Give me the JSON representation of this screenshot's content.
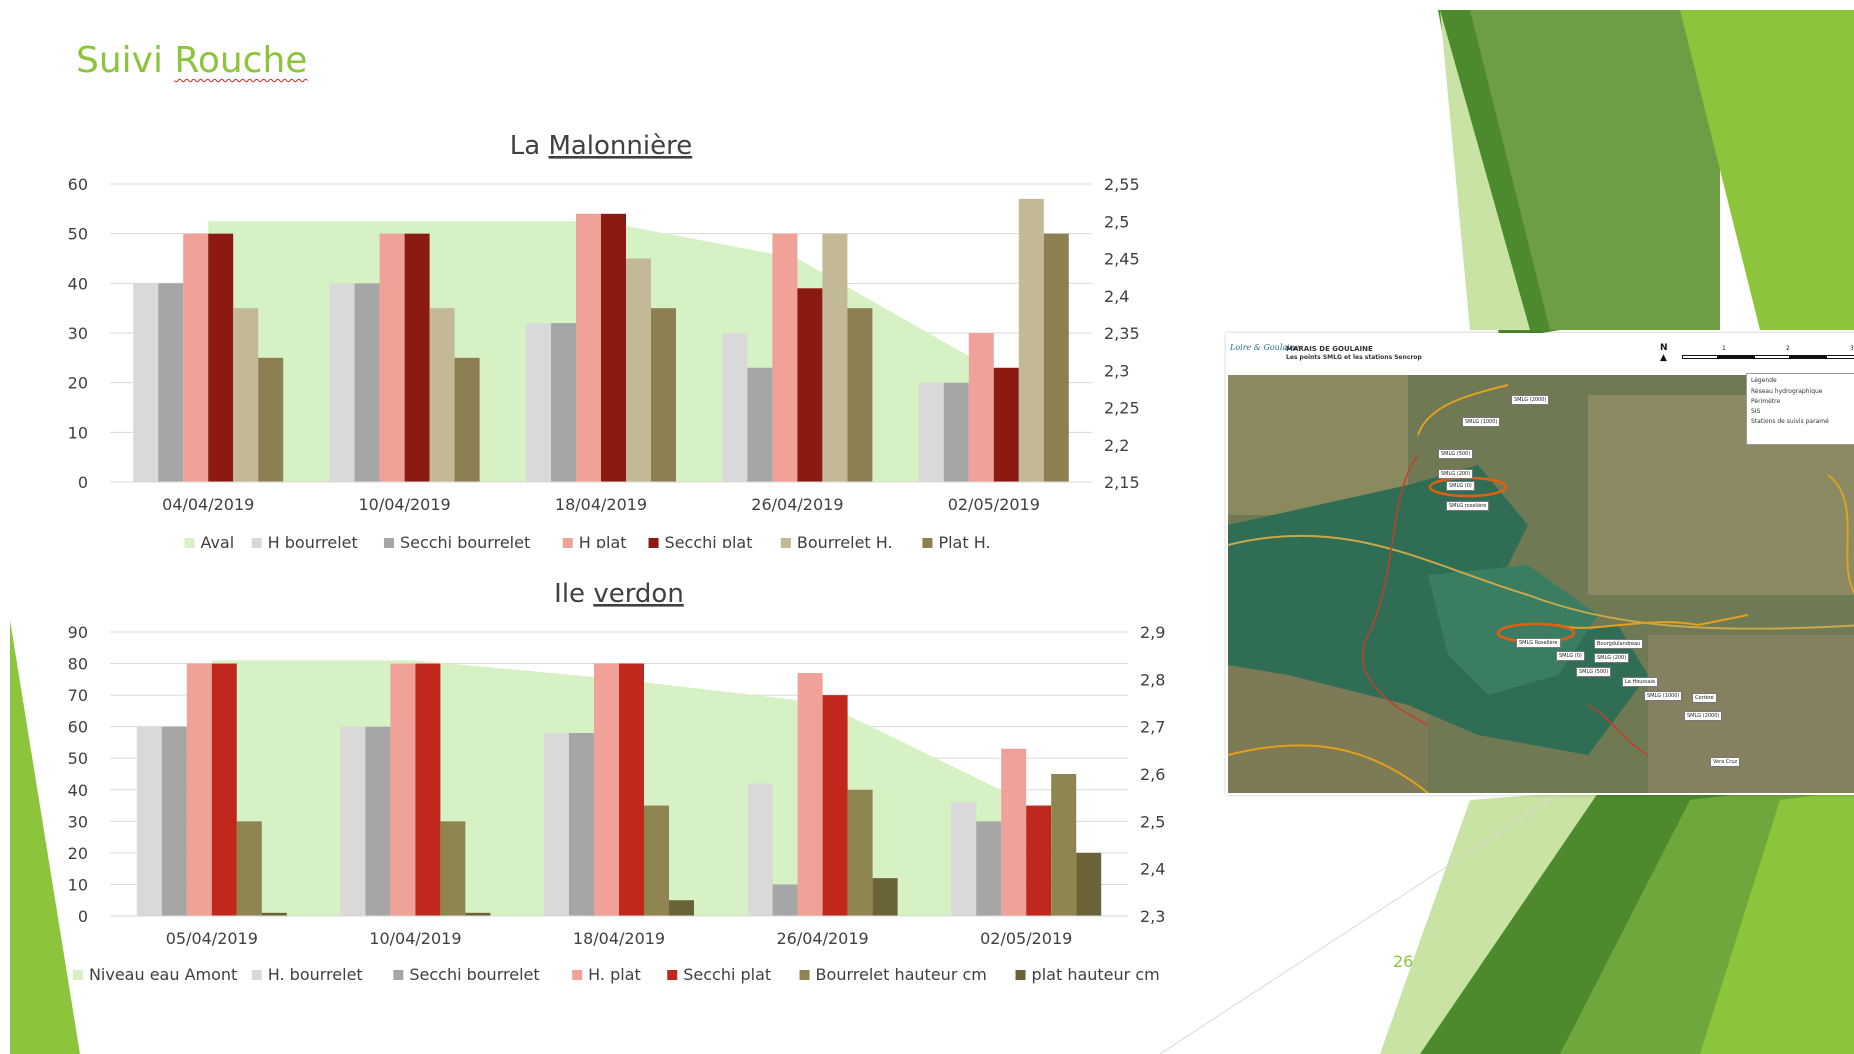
{
  "slide": {
    "title_plain": "Suivi ",
    "title_underlined": "Rouche",
    "page_number": "26"
  },
  "map": {
    "logo": "Loire & Goulaine",
    "title": "MARAIS DE GOULAINE",
    "subtitle": "Les points SMLG et les stations Sencrop",
    "north": "N",
    "scale_ticks": [
      "1",
      "2",
      "3"
    ],
    "legend": {
      "title": "Légende",
      "items": [
        "Réseau hydrographique",
        "Périmètre",
        "SIS",
        "Stations de suivis paramé"
      ]
    },
    "station_labels": [
      "SMLG (2000)",
      "SMLG (1000)",
      "SMLG (500)",
      "SMLG (200)",
      "SMLG (0)",
      "SMLG roselière",
      "SMLG Roselière",
      "SMLG (0)",
      "SMLG (200)",
      "SMLG (500)",
      "Bourgdulandreau",
      "La Houssaie",
      "SMLG (1000)",
      "Certère",
      "SMLG (2000)",
      "Vera Cruz"
    ]
  },
  "colors": {
    "title": "#8cc43c",
    "area": "#d6f1c4",
    "grid": "#d9d9d9",
    "text": "#404040"
  },
  "chart_data": [
    {
      "type": "bar",
      "title_plain": "La ",
      "title_underlined": "Malonnière",
      "categories": [
        "04/04/2019",
        "10/04/2019",
        "18/04/2019",
        "26/04/2019",
        "02/05/2019"
      ],
      "ylim": [
        0,
        60
      ],
      "yticks": [
        "0",
        "10",
        "20",
        "30",
        "40",
        "50",
        "60"
      ],
      "y2lim": [
        2.15,
        2.55
      ],
      "y2ticks": [
        "2,15",
        "2,2",
        "2,25",
        "2,3",
        "2,35",
        "2,4",
        "2,45",
        "2,5",
        "2,55"
      ],
      "area": {
        "name": "Aval",
        "color": "#d6f1c4",
        "values": [
          2.5,
          2.5,
          2.5,
          2.45,
          2.3
        ]
      },
      "series": [
        {
          "name": "H bourrelet",
          "color": "#d9d9d9",
          "values": [
            40,
            40,
            32,
            30,
            20
          ]
        },
        {
          "name": "Secchi bourrelet",
          "color": "#a6a6a6",
          "values": [
            40,
            40,
            32,
            23,
            20
          ]
        },
        {
          "name": "H plat",
          "color": "#f0a298",
          "values": [
            50,
            50,
            54,
            50,
            30
          ]
        },
        {
          "name": "Secchi plat",
          "color": "#8b1a12",
          "values": [
            50,
            50,
            54,
            39,
            23
          ]
        },
        {
          "name": "Bourrelet H.",
          "color": "#c4b996",
          "values": [
            35,
            35,
            45,
            50,
            57
          ]
        },
        {
          "name": "Plat H.",
          "color": "#8e7f52",
          "values": [
            25,
            25,
            35,
            35,
            50
          ]
        }
      ],
      "legend_position": "bottom"
    },
    {
      "type": "bar",
      "title_plain": "Ile ",
      "title_underlined": "verdon",
      "categories": [
        "05/04/2019",
        "10/04/2019",
        "18/04/2019",
        "26/04/2019",
        "02/05/2019"
      ],
      "ylim": [
        0,
        90
      ],
      "yticks": [
        "0",
        "10",
        "20",
        "30",
        "40",
        "50",
        "60",
        "70",
        "80",
        "90"
      ],
      "y2lim": [
        2.3,
        2.9
      ],
      "y2ticks": [
        "2,3",
        "2,4",
        "2,5",
        "2,6",
        "2,7",
        "2,8",
        "2,9"
      ],
      "area": {
        "name": "Niveau eau Amont",
        "color": "#d6f1c4",
        "values": [
          2.84,
          2.84,
          2.8,
          2.75,
          2.54
        ]
      },
      "series": [
        {
          "name": "H. bourrelet",
          "color": "#d9d9d9",
          "values": [
            60,
            60,
            58,
            42,
            36
          ]
        },
        {
          "name": "Secchi bourrelet",
          "color": "#a6a6a6",
          "values": [
            60,
            60,
            58,
            10,
            30
          ]
        },
        {
          "name": "H. plat",
          "color": "#f0a298",
          "values": [
            80,
            80,
            80,
            77,
            53
          ]
        },
        {
          "name": "Secchi plat",
          "color": "#c0281e",
          "values": [
            80,
            80,
            80,
            70,
            35
          ]
        },
        {
          "name": "Bourrelet hauteur cm",
          "color": "#8e8550",
          "values": [
            30,
            30,
            35,
            40,
            45
          ]
        },
        {
          "name": "plat hauteur cm",
          "color": "#6b6338",
          "values": [
            1,
            1,
            5,
            12,
            20
          ]
        }
      ],
      "legend_position": "bottom"
    }
  ]
}
